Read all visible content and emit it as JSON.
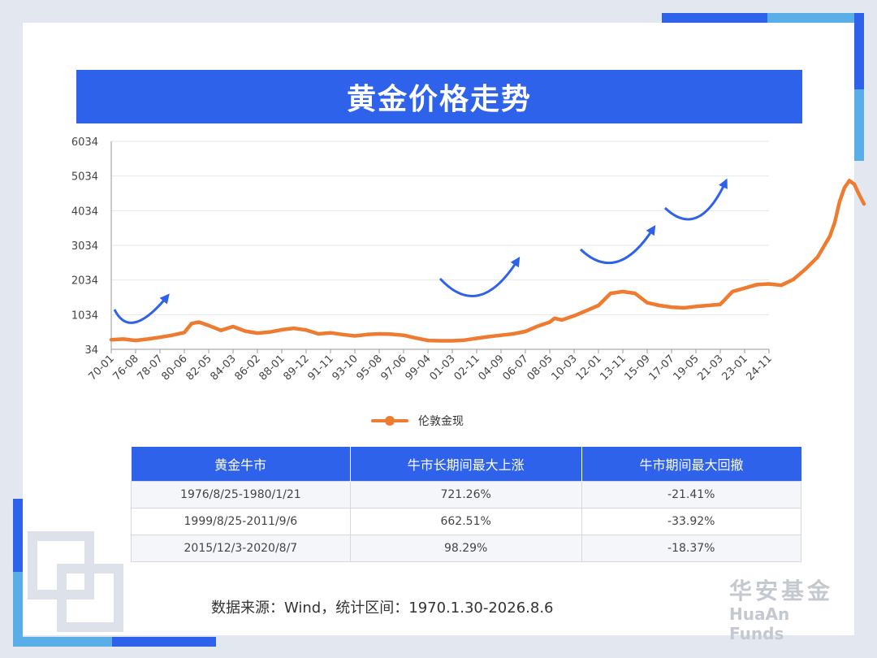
{
  "title": "黄金价格走势",
  "chart_data": {
    "type": "line",
    "title": "黄金价格走势",
    "y_ticks": [
      34,
      1034,
      2034,
      3034,
      4034,
      5034,
      6034
    ],
    "ylim": [
      34,
      6034
    ],
    "x_tick_labels": [
      "70-01",
      "76-08",
      "78-07",
      "80-06",
      "82-05",
      "84-03",
      "86-02",
      "88-01",
      "89-12",
      "91-11",
      "93-10",
      "95-08",
      "97-06",
      "99-04",
      "01-03",
      "02-11",
      "04-09",
      "06-07",
      "08-05",
      "10-03",
      "12-01",
      "13-11",
      "15-09",
      "17-07",
      "19-05",
      "21-03",
      "23-01",
      "24-11"
    ],
    "legend_position": "bottom",
    "series": [
      {
        "name": "伦敦金现",
        "color": "#ee7b30",
        "values": [
          [
            0,
            310
          ],
          [
            0.5,
            330
          ],
          [
            1,
            290
          ],
          [
            1.5,
            330
          ],
          [
            2,
            380
          ],
          [
            2.5,
            440
          ],
          [
            3,
            520
          ],
          [
            3.3,
            780
          ],
          [
            3.6,
            820
          ],
          [
            4,
            720
          ],
          [
            4.5,
            580
          ],
          [
            5,
            690
          ],
          [
            5.5,
            560
          ],
          [
            6,
            500
          ],
          [
            6.5,
            530
          ],
          [
            7,
            600
          ],
          [
            7.5,
            640
          ],
          [
            8,
            590
          ],
          [
            8.5,
            480
          ],
          [
            9,
            510
          ],
          [
            9.5,
            460
          ],
          [
            10,
            420
          ],
          [
            10.5,
            460
          ],
          [
            11,
            480
          ],
          [
            11.5,
            470
          ],
          [
            12,
            440
          ],
          [
            12.5,
            360
          ],
          [
            13,
            290
          ],
          [
            13.5,
            280
          ],
          [
            14,
            280
          ],
          [
            14.5,
            300
          ],
          [
            15,
            350
          ],
          [
            15.5,
            400
          ],
          [
            16,
            440
          ],
          [
            16.5,
            480
          ],
          [
            17,
            550
          ],
          [
            17.5,
            700
          ],
          [
            18,
            820
          ],
          [
            18.2,
            930
          ],
          [
            18.5,
            880
          ],
          [
            19,
            1000
          ],
          [
            19.5,
            1150
          ],
          [
            20,
            1300
          ],
          [
            20.5,
            1650
          ],
          [
            21,
            1700
          ],
          [
            21.5,
            1650
          ],
          [
            22,
            1380
          ],
          [
            22.5,
            1300
          ],
          [
            23,
            1250
          ],
          [
            23.5,
            1230
          ],
          [
            24,
            1270
          ],
          [
            24.5,
            1300
          ],
          [
            25,
            1330
          ],
          [
            25.5,
            1700
          ],
          [
            26,
            1800
          ],
          [
            26.5,
            1900
          ],
          [
            27,
            1920
          ],
          [
            27.5,
            1880
          ],
          [
            28,
            2050
          ],
          [
            28.5,
            2350
          ],
          [
            29,
            2700
          ],
          [
            29.5,
            3300
          ],
          [
            29.7,
            3700
          ],
          [
            29.9,
            4300
          ],
          [
            30.1,
            4700
          ],
          [
            30.3,
            4900
          ],
          [
            30.5,
            4800
          ],
          [
            30.7,
            4500
          ],
          [
            30.9,
            4230
          ]
        ]
      }
    ]
  },
  "table": {
    "headers": [
      "黄金牛市",
      "牛市长期间最大上涨",
      "牛市期间最大回撤"
    ],
    "rows": [
      [
        "1976/8/25-1980/1/21",
        "721.26%",
        "-21.41%"
      ],
      [
        "1999/8/25-2011/9/6",
        "662.51%",
        "-33.92%"
      ],
      [
        "2015/12/3-2020/8/7",
        "98.29%",
        "-18.37%"
      ]
    ]
  },
  "source_text": "数据来源：Wind，统计区间：1970.1.30-2026.8.6",
  "brand": {
    "cn": "华安基金",
    "en": "HuaAn Funds"
  },
  "colors": {
    "accent_blue": "#2f62ea",
    "line_orange": "#ee7b30",
    "arrow_blue": "#2f62ea"
  }
}
